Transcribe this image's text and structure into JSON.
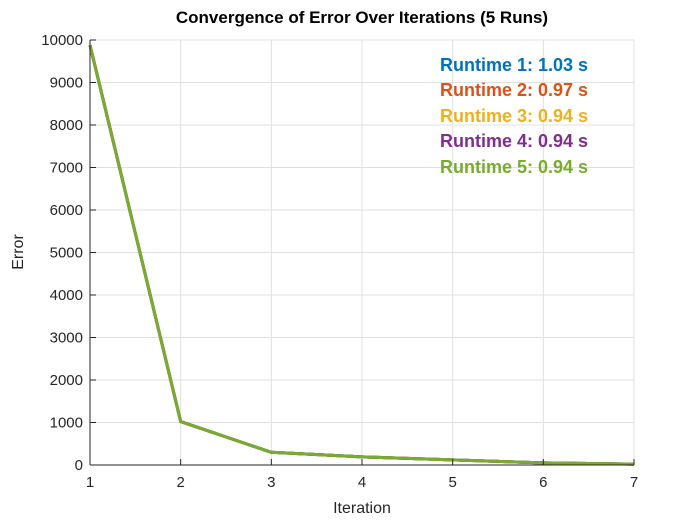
{
  "chart_data": {
    "type": "line",
    "title": "Convergence of Error Over Iterations (5 Runs)",
    "xlabel": "Iteration",
    "ylabel": "Error",
    "xlim": [
      1,
      7
    ],
    "ylim": [
      0,
      10000
    ],
    "xticks": [
      1,
      2,
      3,
      4,
      5,
      6,
      7
    ],
    "yticks": [
      0,
      1000,
      2000,
      3000,
      4000,
      5000,
      6000,
      7000,
      8000,
      9000,
      10000
    ],
    "grid": true,
    "grid_color": "#e0e0e0",
    "axis_color": "#262626",
    "line_width": 3,
    "x": [
      1,
      2,
      3,
      4,
      5,
      6,
      7
    ],
    "series": [
      {
        "name": "Run 1",
        "color": "#0072BD",
        "runtime_s": 1.03,
        "values": [
          9880,
          1020,
          300,
          190,
          120,
          50,
          20
        ]
      },
      {
        "name": "Run 2",
        "color": "#D95319",
        "runtime_s": 0.97,
        "values": [
          9880,
          1020,
          300,
          190,
          120,
          50,
          20
        ]
      },
      {
        "name": "Run 3",
        "color": "#EDB120",
        "runtime_s": 0.94,
        "values": [
          9880,
          1020,
          300,
          190,
          120,
          50,
          20
        ]
      },
      {
        "name": "Run 4",
        "color": "#7E2F8E",
        "runtime_s": 0.94,
        "values": [
          9880,
          1020,
          300,
          190,
          120,
          50,
          20
        ]
      },
      {
        "name": "Run 5",
        "color": "#77AC30",
        "runtime_s": 0.94,
        "values": [
          9880,
          1020,
          300,
          190,
          120,
          50,
          20
        ]
      }
    ],
    "legend_position": "none",
    "note_layout": "all five runs overlap; last drawn (green) line is visible"
  },
  "annotations": {
    "items": [
      {
        "text": "Runtime 1: 1.03 s",
        "color": "#0072BD"
      },
      {
        "text": "Runtime 2: 0.97 s",
        "color": "#D95319"
      },
      {
        "text": "Runtime 3: 0.94 s",
        "color": "#EDB120"
      },
      {
        "text": "Runtime 4: 0.94 s",
        "color": "#7E2F8E"
      },
      {
        "text": "Runtime 5: 0.94 s",
        "color": "#77AC30"
      }
    ]
  }
}
